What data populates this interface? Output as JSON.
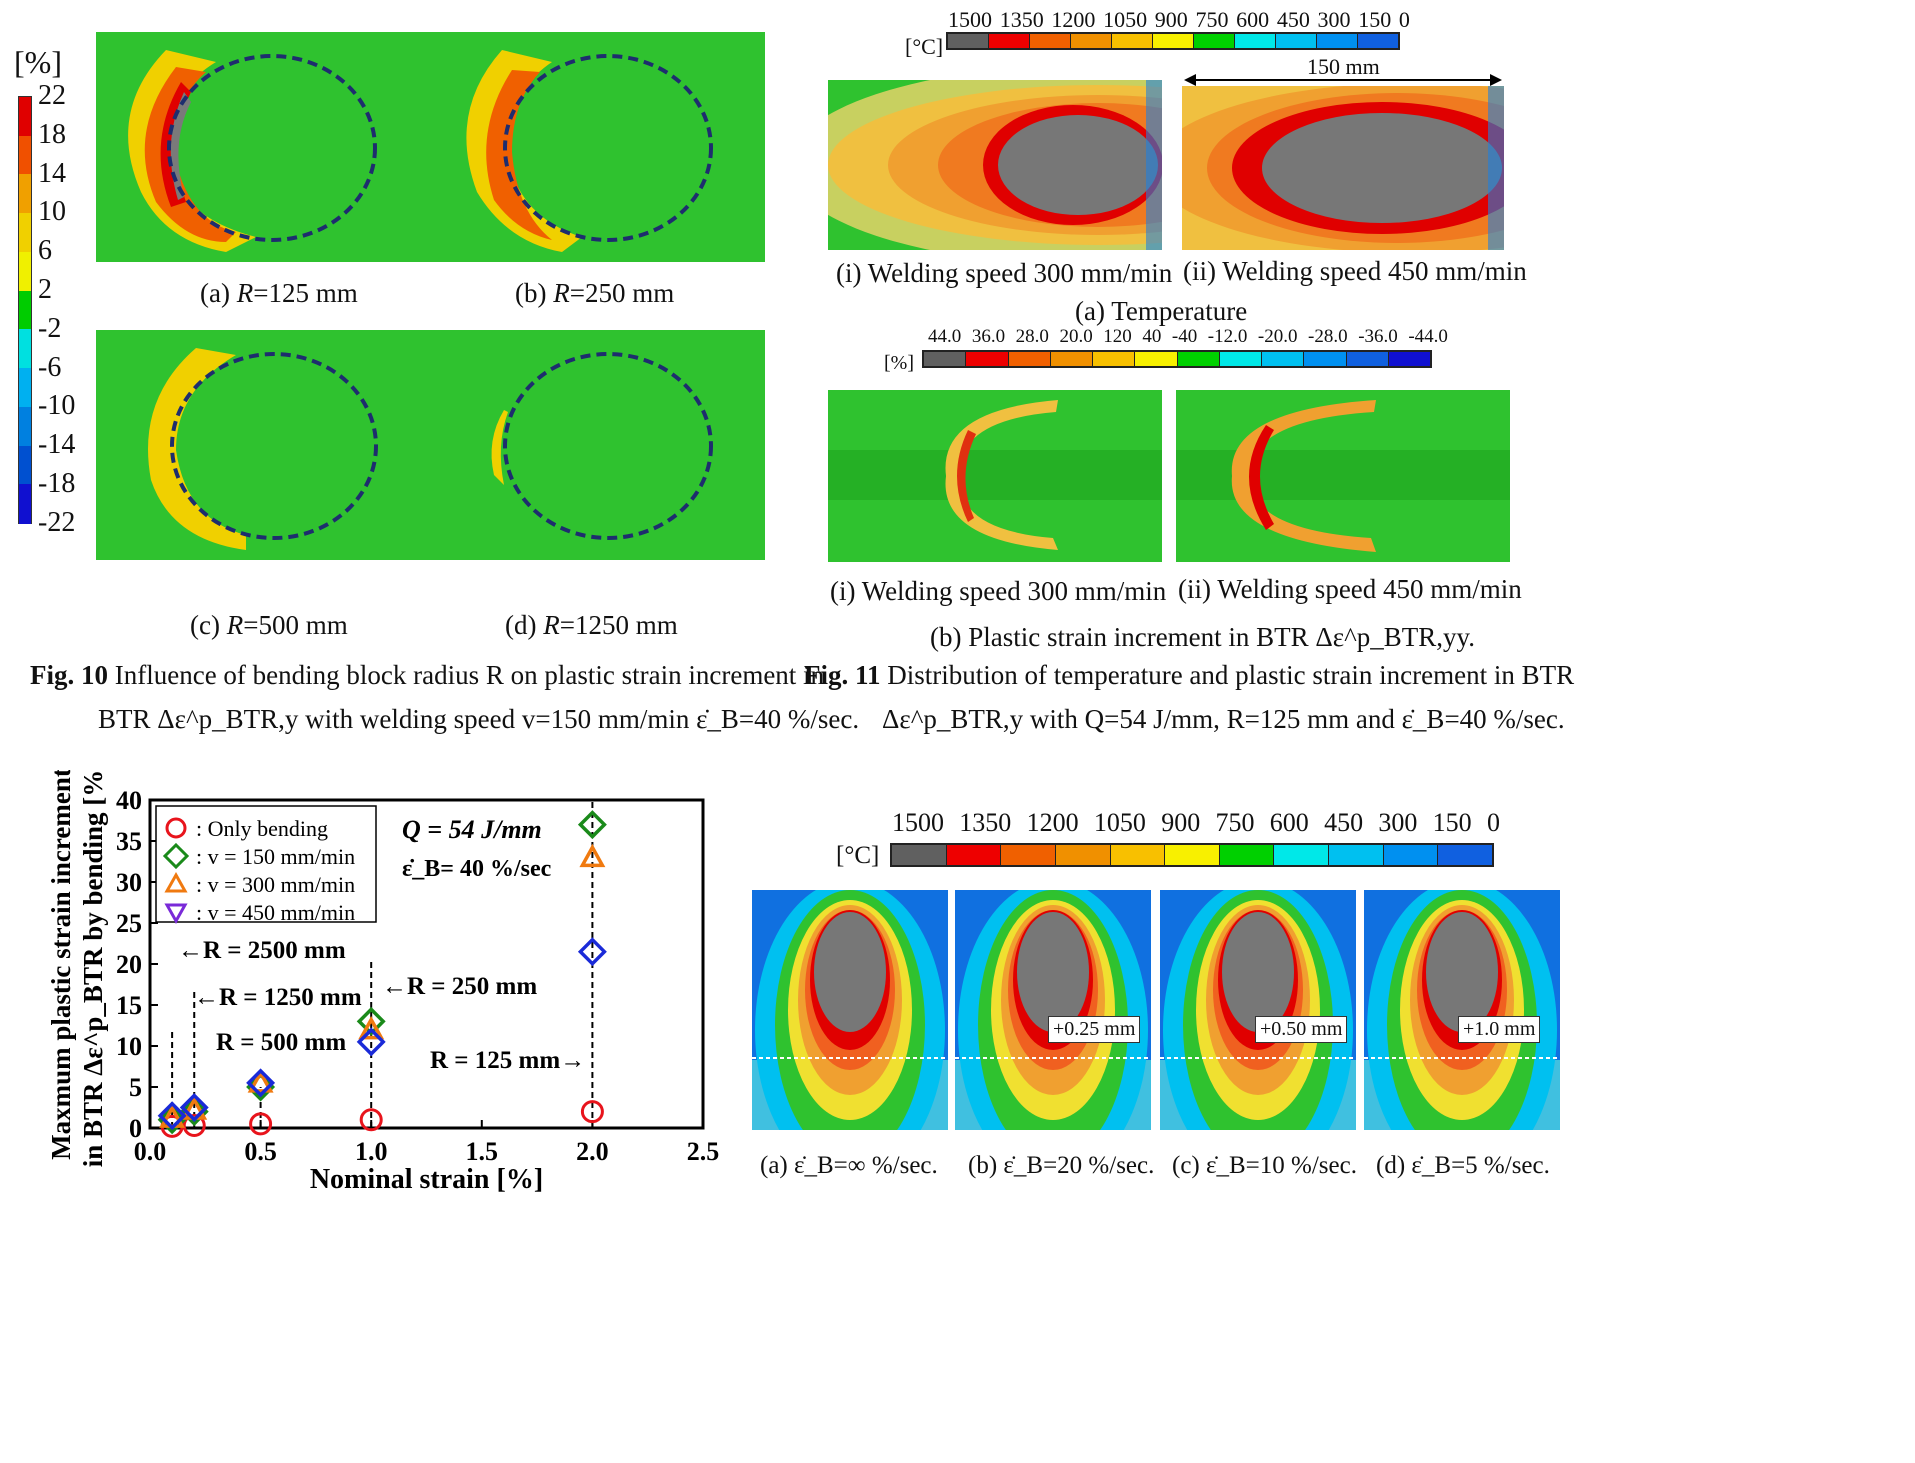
{
  "fig10": {
    "unit": "[%]",
    "scale": [
      "22",
      "18",
      "14",
      "10",
      "6",
      "2",
      "-2",
      "-6",
      "-10",
      "-14",
      "-18",
      "-22"
    ],
    "scale_colors": [
      "#e00000",
      "#f05000",
      "#f0a000",
      "#f0d000",
      "#f0f000",
      "#00cc00",
      "#00e0e0",
      "#00b0f0",
      "#0080e0",
      "#0050d0",
      "#1010d0"
    ],
    "panels": [
      {
        "pre": "(a) ",
        "var": "R",
        "post": "=125 mm"
      },
      {
        "pre": "(b) ",
        "var": "R",
        "post": "=250 mm"
      },
      {
        "pre": "(c) ",
        "var": "R",
        "post": "=500 mm"
      },
      {
        "pre": "(d) ",
        "var": "R",
        "post": "=1250 mm"
      }
    ],
    "caption_num": "Fig. 10",
    "caption_line1": "Influence of bending block radius R on plastic strain increment in",
    "caption_line2": "BTR  Δε^p_BTR,y  with welding speed v=150 mm/min  ε̇_B=40 %/sec."
  },
  "fig11": {
    "temp_unit": "[°C]",
    "temp_ticks": [
      "1500",
      "1350",
      "1200",
      "1050",
      "900",
      "750",
      "600",
      "450",
      "300",
      "150",
      "0"
    ],
    "temp_colors": [
      "#606060",
      "#ee0000",
      "#f06000",
      "#f09000",
      "#f8c000",
      "#f8f000",
      "#00d000",
      "#00e8e8",
      "#00c0f0",
      "#0090f0",
      "#1060e0"
    ],
    "dimension": "150 mm",
    "temp_panels": [
      "(i) Welding speed 300 mm/min",
      "(ii) Welding speed 450 mm/min"
    ],
    "temp_title": "(a) Temperature",
    "strain_unit": "[%]",
    "strain_ticks": [
      "44.0",
      "36.0",
      "28.0",
      "20.0",
      "120",
      "40",
      "-40",
      "-12.0",
      "-20.0",
      "-28.0",
      "-36.0",
      "-44.0"
    ],
    "strain_colors": [
      "#606060",
      "#ee0000",
      "#f06000",
      "#f09000",
      "#f8c000",
      "#f8f000",
      "#00d000",
      "#00e8e8",
      "#00c0f0",
      "#0090f0",
      "#1060e0",
      "#1010d0"
    ],
    "strain_panels": [
      "(i) Welding speed 300 mm/min",
      "(ii) Welding speed 450 mm/min"
    ],
    "strain_title": "(b) Plastic strain increment in BTR  Δε^p_BTR,yy.",
    "caption_num": "Fig. 11",
    "caption_line1": "Distribution of temperature and plastic strain increment in BTR",
    "caption_line2": "Δε^p_BTR,y  with Q=54 J/mm, R=125 mm and  ε̇_B=40 %/sec."
  },
  "fig12": {
    "temp_unit": "[°C]",
    "temp_ticks": [
      "1500",
      "1350",
      "1200",
      "1050",
      "900",
      "750",
      "600",
      "450",
      "300",
      "150",
      "0"
    ],
    "offsets": [
      "+0.25 mm",
      "+0.50 mm",
      "+1.0 mm"
    ],
    "panels": [
      "(a) ε̇_B=∞  %/sec.",
      "(b) ε̇_B=20 %/sec.",
      "(c) ε̇_B=10 %/sec.",
      "(d) ε̇_B=5 %/sec."
    ]
  },
  "chart_data": {
    "type": "scatter",
    "xlabel": "Nominal strain [%]",
    "ylabel_line1": "Maxmum plastic strain increment",
    "ylabel_line2": "in BTR  Δε^p_BTR  by bending [%]",
    "xlim": [
      0,
      2.5
    ],
    "ylim": [
      0,
      40
    ],
    "xticks": [
      "0.0",
      "0.5",
      "1.0",
      "1.5",
      "2.0",
      "2.5"
    ],
    "yticks": [
      "0",
      "5",
      "10",
      "15",
      "20",
      "25",
      "30",
      "35",
      "40"
    ],
    "series": [
      {
        "name": ": Only bending",
        "marker": "circle",
        "color": "#e8141c",
        "x": [
          0.1,
          0.2,
          0.5,
          1.0,
          2.0
        ],
        "y": [
          0.2,
          0.3,
          0.5,
          1.0,
          2.0
        ]
      },
      {
        "name": ": v = 150 mm/min",
        "marker": "diamond",
        "color": "#1a8a1a",
        "x": [
          0.1,
          0.2,
          0.5,
          1.0,
          2.0
        ],
        "y": [
          1.0,
          2.0,
          5.0,
          13.0,
          37.0
        ]
      },
      {
        "name": ": v = 300 mm/min",
        "marker": "triangle-up",
        "color": "#f07a10",
        "x": [
          0.1,
          0.2,
          0.5,
          1.0,
          2.0
        ],
        "y": [
          1.2,
          2.2,
          5.5,
          12.0,
          33.0
        ]
      },
      {
        "name": ": v = 450 mm/min",
        "marker": "triangle-down",
        "color": "#7a2ad8",
        "x": [
          0.1,
          0.2,
          0.5,
          1.0,
          2.0
        ],
        "y": [
          1.5,
          2.5,
          5.5,
          10.5,
          21.5
        ]
      }
    ],
    "annotations": {
      "r2500": "←R = 2500 mm",
      "r1250": "←R = 1250 mm",
      "r500": "R = 500 mm",
      "r250": "←R = 250 mm",
      "r125": "R = 125 mm→",
      "q": "Q = 54 J/mm",
      "eb": "ε̇_B= 40 %/sec"
    }
  }
}
